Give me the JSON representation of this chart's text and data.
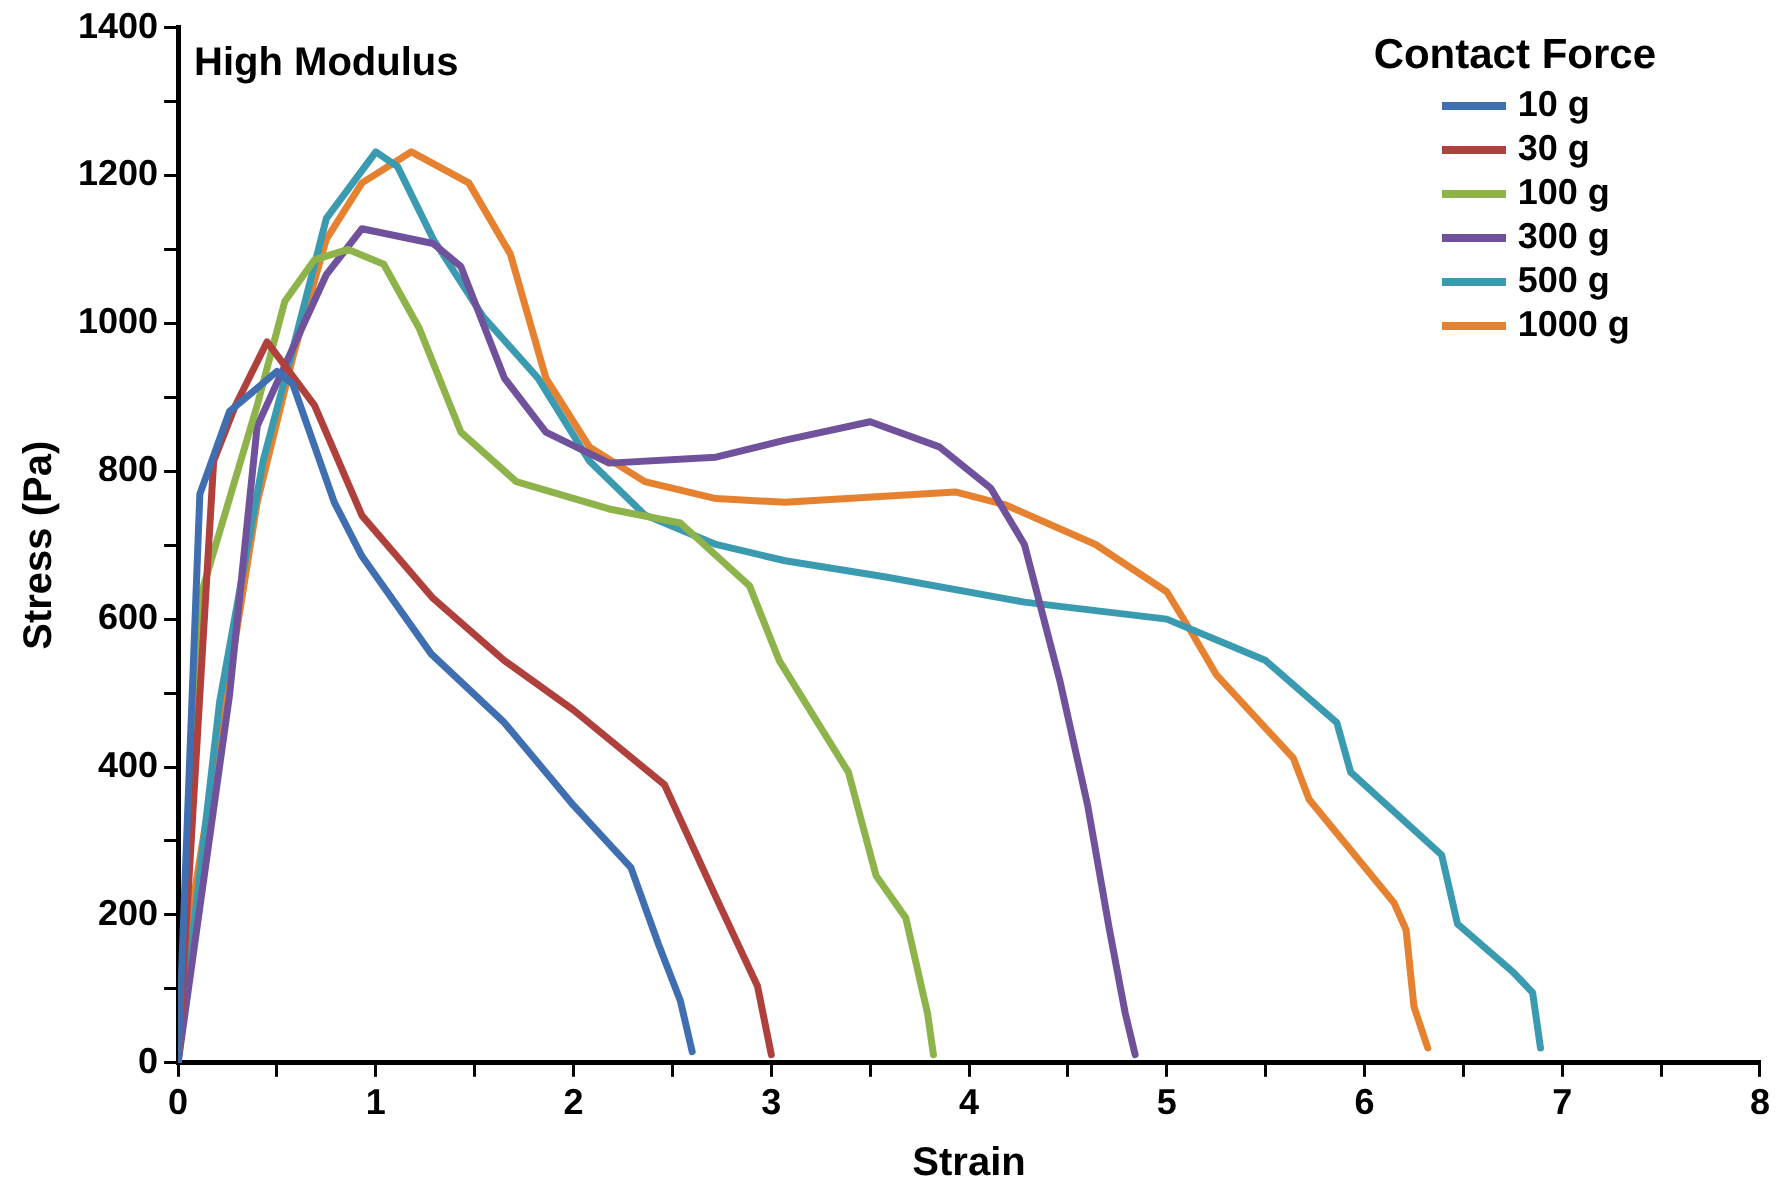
{
  "chart_data": {
    "type": "line",
    "xlabel": "Strain",
    "ylabel": "Stress (Pa)",
    "legend_title": "Contact Force",
    "annotations": [
      "High Modulus"
    ],
    "xlim": [
      0,
      8
    ],
    "ylim": [
      0,
      1400
    ],
    "xticks": [
      0,
      {
        "value": 0.5,
        "label": null
      },
      1,
      {
        "value": 1.5,
        "label": null
      },
      2,
      {
        "value": 2.5,
        "label": null
      },
      3,
      {
        "value": 3.5,
        "label": null
      },
      4,
      {
        "value": 4.5,
        "label": null
      },
      5,
      {
        "value": 5.5,
        "label": null
      },
      6,
      {
        "value": 6.5,
        "label": null
      },
      7,
      {
        "value": 7.5,
        "label": null
      },
      8
    ],
    "yticks": [
      0,
      {
        "value": 100,
        "label": null
      },
      200,
      {
        "value": 300,
        "label": null
      },
      400,
      {
        "value": 500,
        "label": null
      },
      600,
      {
        "value": 700,
        "label": null
      },
      800,
      {
        "value": 900,
        "label": null
      },
      1000,
      {
        "value": 1100,
        "label": null
      },
      1200,
      {
        "value": 1300,
        "label": null
      },
      1400
    ],
    "grid": false,
    "legend": "top right",
    "marker": "none",
    "line_style": "solid",
    "series": [
      {
        "name": "10 g",
        "color": "#3f6fb0",
        "x": [
          0,
          0.11,
          0.26,
          0.5,
          0.58,
          0.79,
          0.93,
          1.28,
          1.65,
          2.0,
          2.29,
          2.43,
          2.54,
          2.6
        ],
        "values": [
          0,
          769,
          881,
          935,
          918,
          758,
          685,
          553,
          460,
          348,
          264,
          160,
          84,
          15
        ]
      },
      {
        "name": "30 g",
        "color": "#b0403c",
        "x": [
          0,
          0.18,
          0.29,
          0.45,
          0.69,
          0.93,
          1.29,
          1.65,
          2.0,
          2.46,
          2.72,
          2.93,
          3.0
        ],
        "values": [
          0,
          814,
          889,
          975,
          889,
          740,
          628,
          544,
          477,
          376,
          224,
          104,
          11
        ]
      },
      {
        "name": "100 g",
        "color": "#8db34a",
        "x": [
          0,
          0.11,
          0.4,
          0.54,
          0.69,
          0.86,
          1.04,
          1.22,
          1.43,
          1.71,
          2.18,
          2.54,
          2.89,
          3.04,
          3.39,
          3.53,
          3.68,
          3.79,
          3.82
        ],
        "values": [
          0,
          628,
          889,
          1030,
          1086,
          1100,
          1080,
          993,
          853,
          786,
          749,
          730,
          645,
          544,
          393,
          253,
          196,
          67,
          11
        ]
      },
      {
        "name": "300 g",
        "color": "#70519b",
        "x": [
          0,
          0.26,
          0.4,
          0.75,
          0.93,
          1.29,
          1.43,
          1.65,
          1.86,
          2.18,
          2.72,
          3.07,
          3.5,
          3.85,
          4.11,
          4.28,
          4.46,
          4.6,
          4.71,
          4.79,
          4.84
        ],
        "values": [
          0,
          497,
          861,
          1066,
          1128,
          1108,
          1077,
          926,
          853,
          811,
          819,
          842,
          867,
          833,
          777,
          701,
          516,
          348,
          180,
          67,
          11
        ]
      },
      {
        "name": "500 g",
        "color": "#3a9bb0",
        "x": [
          0,
          0.21,
          0.43,
          0.58,
          0.75,
          1.0,
          1.11,
          1.29,
          1.54,
          1.82,
          2.08,
          2.36,
          2.72,
          3.07,
          3.58,
          4.28,
          5.0,
          5.35,
          5.5,
          5.86,
          5.93,
          6.39,
          6.47,
          6.75,
          6.85,
          6.89
        ],
        "values": [
          0,
          488,
          814,
          965,
          1142,
          1232,
          1212,
          1114,
          1010,
          926,
          814,
          741,
          701,
          679,
          657,
          623,
          600,
          561,
          544,
          460,
          393,
          281,
          188,
          123,
          95,
          20
        ]
      },
      {
        "name": "1000 g",
        "color": "#e6812f",
        "x": [
          0,
          0.04,
          0.21,
          0.4,
          0.58,
          0.75,
          0.93,
          1.18,
          1.47,
          1.68,
          1.86,
          2.08,
          2.36,
          2.72,
          3.07,
          3.93,
          4.18,
          4.64,
          5.0,
          5.11,
          5.25,
          5.64,
          5.72,
          6.15,
          6.21,
          6.25,
          6.32
        ],
        "values": [
          0,
          160,
          440,
          758,
          954,
          1114,
          1190,
          1232,
          1190,
          1094,
          926,
          833,
          786,
          763,
          758,
          772,
          755,
          701,
          637,
          589,
          525,
          412,
          356,
          216,
          180,
          76,
          20
        ]
      }
    ]
  }
}
